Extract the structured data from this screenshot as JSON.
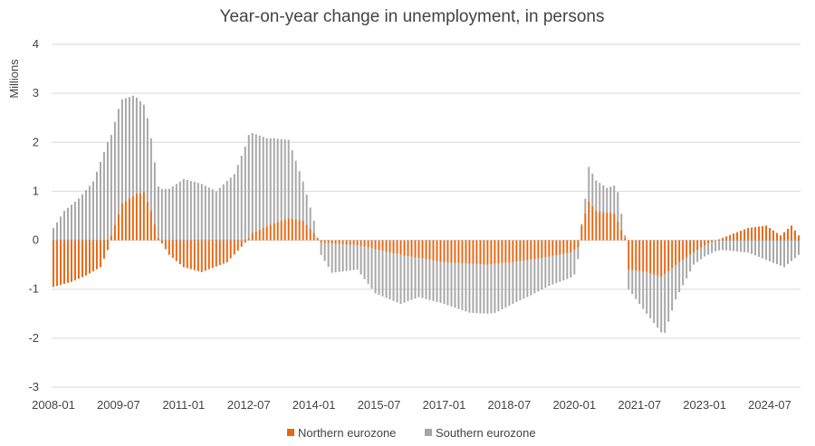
{
  "chart_data": {
    "type": "bar",
    "stacked": true,
    "title": "Year-on-year change in unemployment, in persons",
    "ylabel": "Millions",
    "xlabel": "",
    "ylim": [
      -3,
      4
    ],
    "yticks": [
      -3,
      -2,
      -1,
      0,
      1,
      2,
      3,
      4
    ],
    "x_range": [
      "2008-01",
      "2025-03"
    ],
    "xticks": [
      "2008-01",
      "2009-07",
      "2011-01",
      "2012-07",
      "2014-01",
      "2015-07",
      "2017-01",
      "2018-07",
      "2020-01",
      "2021-07",
      "2023-01",
      "2024-07"
    ],
    "grid": "horizontal",
    "legend_position": "bottom",
    "series": [
      {
        "name": "Northern eurozone",
        "color": "#e9650f",
        "anchors": [
          [
            "2008-01",
            -0.95
          ],
          [
            "2008-06",
            -0.85
          ],
          [
            "2008-10",
            -0.72
          ],
          [
            "2009-02",
            -0.55
          ],
          [
            "2009-04",
            -0.2
          ],
          [
            "2009-05",
            0.1
          ],
          [
            "2009-08",
            0.75
          ],
          [
            "2009-12",
            0.95
          ],
          [
            "2010-02",
            0.98
          ],
          [
            "2010-04",
            0.6
          ],
          [
            "2010-06",
            0.05
          ],
          [
            "2010-09",
            -0.3
          ],
          [
            "2011-01",
            -0.55
          ],
          [
            "2011-06",
            -0.65
          ],
          [
            "2012-01",
            -0.45
          ],
          [
            "2012-06",
            -0.05
          ],
          [
            "2012-08",
            0.15
          ],
          [
            "2013-02",
            0.35
          ],
          [
            "2013-06",
            0.45
          ],
          [
            "2013-10",
            0.4
          ],
          [
            "2014-01",
            0.15
          ],
          [
            "2014-03",
            -0.05
          ],
          [
            "2015-01",
            -0.1
          ],
          [
            "2016-01",
            -0.3
          ],
          [
            "2017-01",
            -0.45
          ],
          [
            "2018-01",
            -0.5
          ],
          [
            "2019-01",
            -0.4
          ],
          [
            "2019-12",
            -0.25
          ],
          [
            "2020-02",
            -0.15
          ],
          [
            "2020-03",
            0.3
          ],
          [
            "2020-05",
            0.8
          ],
          [
            "2020-07",
            0.6
          ],
          [
            "2020-12",
            0.55
          ],
          [
            "2021-03",
            0.05
          ],
          [
            "2021-04",
            -0.6
          ],
          [
            "2021-09",
            -0.65
          ],
          [
            "2022-01",
            -0.75
          ],
          [
            "2022-06",
            -0.45
          ],
          [
            "2023-01",
            -0.1
          ],
          [
            "2023-06",
            0.05
          ],
          [
            "2024-01",
            0.25
          ],
          [
            "2024-06",
            0.3
          ],
          [
            "2024-10",
            0.1
          ],
          [
            "2025-01",
            0.3
          ],
          [
            "2025-03",
            0.1
          ]
        ]
      },
      {
        "name": "Southern eurozone",
        "color": "#a6a6a6",
        "anchors": [
          [
            "2008-01",
            0.25
          ],
          [
            "2008-04",
            0.6
          ],
          [
            "2008-08",
            0.85
          ],
          [
            "2008-12",
            1.2
          ],
          [
            "2009-04",
            2.0
          ],
          [
            "2009-07",
            2.15
          ],
          [
            "2009-11",
            2.05
          ],
          [
            "2010-03",
            1.7
          ],
          [
            "2010-06",
            1.05
          ],
          [
            "2010-09",
            1.05
          ],
          [
            "2011-01",
            1.25
          ],
          [
            "2011-06",
            1.15
          ],
          [
            "2011-10",
            1.0
          ],
          [
            "2012-03",
            1.35
          ],
          [
            "2012-07",
            2.1
          ],
          [
            "2012-12",
            1.8
          ],
          [
            "2013-06",
            1.6
          ],
          [
            "2013-10",
            0.8
          ],
          [
            "2014-01",
            0.25
          ],
          [
            "2014-03",
            -0.25
          ],
          [
            "2014-06",
            -0.6
          ],
          [
            "2015-01",
            -0.5
          ],
          [
            "2015-06",
            -0.9
          ],
          [
            "2016-01",
            -1.0
          ],
          [
            "2016-06",
            -0.8
          ],
          [
            "2017-01",
            -0.85
          ],
          [
            "2017-08",
            -1.0
          ],
          [
            "2018-03",
            -1.0
          ],
          [
            "2018-10",
            -0.8
          ],
          [
            "2019-06",
            -0.6
          ],
          [
            "2020-01",
            -0.5
          ],
          [
            "2020-04",
            0.3
          ],
          [
            "2020-05",
            0.7
          ],
          [
            "2020-10",
            0.5
          ],
          [
            "2021-01",
            0.6
          ],
          [
            "2021-03",
            0.05
          ],
          [
            "2021-04",
            -0.4
          ],
          [
            "2021-09",
            -0.85
          ],
          [
            "2022-02",
            -1.2
          ],
          [
            "2022-05",
            -0.7
          ],
          [
            "2022-10",
            -0.25
          ],
          [
            "2023-06",
            -0.2
          ],
          [
            "2024-01",
            -0.25
          ],
          [
            "2024-06",
            -0.4
          ],
          [
            "2024-11",
            -0.55
          ],
          [
            "2025-03",
            -0.3
          ]
        ]
      }
    ]
  }
}
